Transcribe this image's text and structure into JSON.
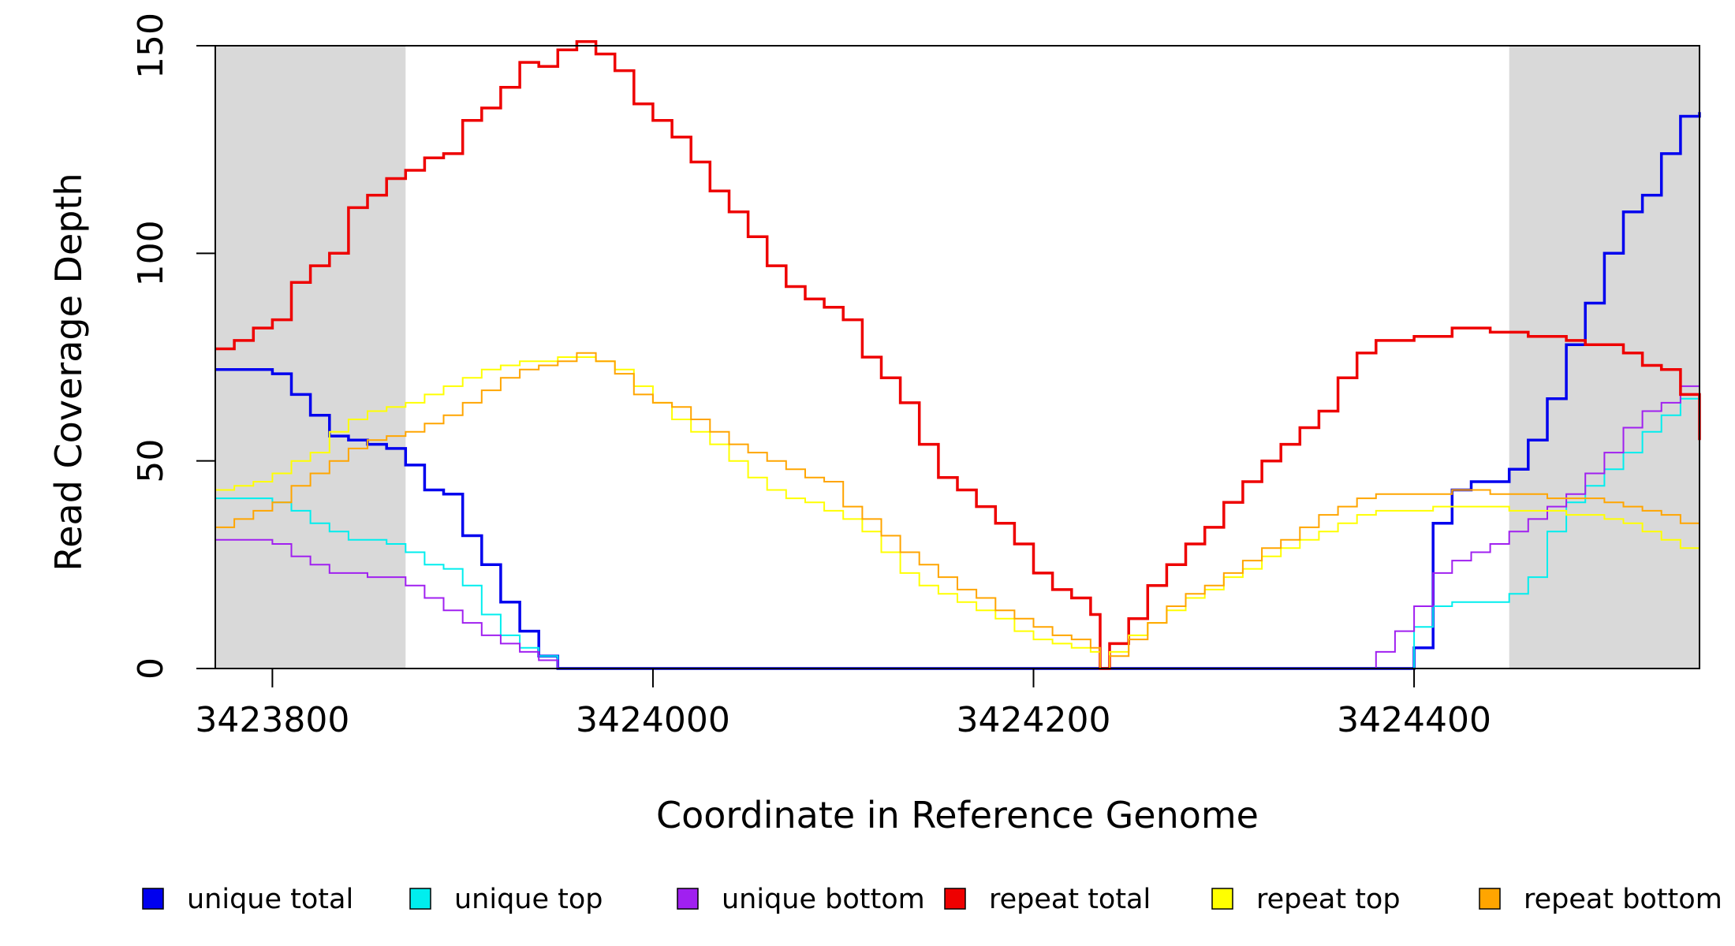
{
  "chart_data": {
    "type": "line",
    "xlabel": "Coordinate in Reference Genome",
    "ylabel": "Read Coverage Depth",
    "xlim": [
      3423770,
      3424550
    ],
    "ylim": [
      0,
      150
    ],
    "x_ticks": [
      3423800,
      3424000,
      3424200,
      3424400
    ],
    "y_ticks": [
      0,
      50,
      100,
      150
    ],
    "shaded_regions": [
      {
        "from": 3423770,
        "to": 3423870,
        "color": "#d9d9d9"
      },
      {
        "from": 3424450,
        "to": 3424550,
        "color": "#d9d9d9"
      }
    ],
    "grid": false,
    "legend_position": "bottom",
    "series": [
      {
        "name": "unique total",
        "color": "#0000ee",
        "x": [
          3423770,
          3423790,
          3423800,
          3423810,
          3423820,
          3423830,
          3423840,
          3423850,
          3423860,
          3423870,
          3423880,
          3423890,
          3423900,
          3423910,
          3423920,
          3423930,
          3423940,
          3423950,
          3423960,
          3424370,
          3424380,
          3424390,
          3424400,
          3424410,
          3424420,
          3424430,
          3424440,
          3424450,
          3424460,
          3424470,
          3424480,
          3424490,
          3424500,
          3424510,
          3424520,
          3424530,
          3424540,
          3424550
        ],
        "y": [
          72,
          72,
          71,
          66,
          61,
          56,
          55,
          54,
          53,
          49,
          43,
          42,
          32,
          25,
          16,
          9,
          3,
          0,
          0,
          0,
          0,
          0,
          5,
          35,
          43,
          45,
          45,
          48,
          55,
          65,
          78,
          88,
          100,
          110,
          114,
          124,
          133,
          134
        ]
      },
      {
        "name": "unique top",
        "color": "#00eeee",
        "x": [
          3423770,
          3423790,
          3423800,
          3423810,
          3423820,
          3423830,
          3423840,
          3423850,
          3423860,
          3423870,
          3423880,
          3423890,
          3423900,
          3423910,
          3423920,
          3423930,
          3423940,
          3423950,
          3423960,
          3424390,
          3424395,
          3424400,
          3424410,
          3424420,
          3424430,
          3424440,
          3424450,
          3424460,
          3424470,
          3424480,
          3424490,
          3424500,
          3424510,
          3424520,
          3424530,
          3424540,
          3424550
        ],
        "y": [
          41,
          41,
          40,
          38,
          35,
          33,
          31,
          31,
          30,
          28,
          25,
          24,
          20,
          13,
          8,
          5,
          3,
          0,
          0,
          0,
          0,
          10,
          15,
          16,
          16,
          16,
          18,
          22,
          33,
          40,
          44,
          48,
          52,
          57,
          61,
          65,
          66
        ]
      },
      {
        "name": "unique bottom",
        "color": "#a020f0",
        "x": [
          3423770,
          3423790,
          3423800,
          3423810,
          3423820,
          3423830,
          3423840,
          3423850,
          3423860,
          3423870,
          3423880,
          3423890,
          3423900,
          3423910,
          3423920,
          3423930,
          3423940,
          3423950,
          3423960,
          3424360,
          3424370,
          3424380,
          3424390,
          3424400,
          3424410,
          3424420,
          3424430,
          3424440,
          3424450,
          3424460,
          3424470,
          3424480,
          3424490,
          3424500,
          3424510,
          3424520,
          3424530,
          3424540,
          3424550
        ],
        "y": [
          31,
          31,
          30,
          27,
          25,
          23,
          23,
          22,
          22,
          20,
          17,
          14,
          11,
          8,
          6,
          4,
          2,
          0,
          0,
          0,
          0,
          4,
          9,
          15,
          23,
          26,
          28,
          30,
          33,
          36,
          39,
          42,
          47,
          52,
          58,
          62,
          64,
          68,
          68
        ]
      },
      {
        "name": "repeat total",
        "color": "#ee0000",
        "x": [
          3423770,
          3423780,
          3423790,
          3423800,
          3423810,
          3423820,
          3423830,
          3423840,
          3423850,
          3423860,
          3423870,
          3423880,
          3423890,
          3423900,
          3423910,
          3423920,
          3423930,
          3423940,
          3423950,
          3423960,
          3423970,
          3423980,
          3423990,
          3424000,
          3424010,
          3424020,
          3424030,
          3424040,
          3424050,
          3424060,
          3424070,
          3424080,
          3424090,
          3424100,
          3424110,
          3424120,
          3424130,
          3424140,
          3424150,
          3424160,
          3424170,
          3424180,
          3424190,
          3424200,
          3424210,
          3424220,
          3424230,
          3424235,
          3424240,
          3424250,
          3424260,
          3424270,
          3424280,
          3424290,
          3424300,
          3424310,
          3424320,
          3424330,
          3424340,
          3424350,
          3424360,
          3424370,
          3424380,
          3424390,
          3424400,
          3424410,
          3424420,
          3424430,
          3424440,
          3424450,
          3424460,
          3424470,
          3424480,
          3424490,
          3424500,
          3424510,
          3424520,
          3424530,
          3424540,
          3424550
        ],
        "y": [
          77,
          79,
          82,
          84,
          93,
          97,
          100,
          111,
          114,
          118,
          120,
          123,
          124,
          132,
          135,
          140,
          146,
          145,
          149,
          151,
          148,
          144,
          136,
          132,
          128,
          122,
          115,
          110,
          104,
          97,
          92,
          89,
          87,
          84,
          75,
          70,
          64,
          54,
          46,
          43,
          39,
          35,
          30,
          23,
          19,
          17,
          13,
          0,
          6,
          12,
          20,
          25,
          30,
          34,
          40,
          45,
          50,
          54,
          58,
          62,
          70,
          76,
          79,
          79,
          80,
          80,
          82,
          82,
          81,
          81,
          80,
          80,
          79,
          78,
          78,
          76,
          73,
          72,
          66,
          55
        ]
      },
      {
        "name": "repeat top",
        "color": "#ffff00",
        "x": [
          3423770,
          3423780,
          3423790,
          3423800,
          3423810,
          3423820,
          3423830,
          3423840,
          3423850,
          3423860,
          3423870,
          3423880,
          3423890,
          3423900,
          3423910,
          3423920,
          3423930,
          3423940,
          3423950,
          3423960,
          3423970,
          3423980,
          3423990,
          3424000,
          3424010,
          3424020,
          3424030,
          3424040,
          3424050,
          3424060,
          3424070,
          3424080,
          3424090,
          3424100,
          3424110,
          3424120,
          3424130,
          3424140,
          3424150,
          3424160,
          3424170,
          3424180,
          3424190,
          3424200,
          3424210,
          3424220,
          3424230,
          3424235,
          3424240,
          3424250,
          3424260,
          3424270,
          3424280,
          3424290,
          3424300,
          3424310,
          3424320,
          3424330,
          3424340,
          3424350,
          3424360,
          3424370,
          3424380,
          3424390,
          3424400,
          3424410,
          3424420,
          3424430,
          3424440,
          3424450,
          3424460,
          3424470,
          3424480,
          3424490,
          3424500,
          3424510,
          3424520,
          3424530,
          3424540,
          3424550
        ],
        "y": [
          43,
          44,
          45,
          47,
          50,
          52,
          57,
          60,
          62,
          63,
          64,
          66,
          68,
          70,
          72,
          73,
          74,
          74,
          75,
          75,
          74,
          72,
          68,
          64,
          60,
          57,
          54,
          50,
          46,
          43,
          41,
          40,
          38,
          36,
          33,
          28,
          23,
          20,
          18,
          16,
          14,
          12,
          9,
          7,
          6,
          5,
          4,
          0,
          4,
          8,
          11,
          14,
          17,
          19,
          22,
          24,
          27,
          29,
          31,
          33,
          35,
          37,
          38,
          38,
          38,
          39,
          39,
          39,
          39,
          38,
          38,
          38,
          37,
          37,
          36,
          35,
          33,
          31,
          29,
          26
        ]
      },
      {
        "name": "repeat bottom",
        "color": "#ffa500",
        "x": [
          3423770,
          3423780,
          3423790,
          3423800,
          3423810,
          3423820,
          3423830,
          3423840,
          3423850,
          3423860,
          3423870,
          3423880,
          3423890,
          3423900,
          3423910,
          3423920,
          3423930,
          3423940,
          3423950,
          3423960,
          3423970,
          3423980,
          3423990,
          3424000,
          3424010,
          3424020,
          3424030,
          3424040,
          3424050,
          3424060,
          3424070,
          3424080,
          3424090,
          3424100,
          3424110,
          3424120,
          3424130,
          3424140,
          3424150,
          3424160,
          3424170,
          3424180,
          3424190,
          3424200,
          3424210,
          3424220,
          3424230,
          3424235,
          3424240,
          3424250,
          3424260,
          3424270,
          3424280,
          3424290,
          3424300,
          3424310,
          3424320,
          3424330,
          3424340,
          3424350,
          3424360,
          3424370,
          3424380,
          3424390,
          3424400,
          3424410,
          3424420,
          3424430,
          3424440,
          3424450,
          3424460,
          3424470,
          3424480,
          3424490,
          3424500,
          3424510,
          3424520,
          3424530,
          3424540,
          3424550
        ],
        "y": [
          34,
          36,
          38,
          40,
          44,
          47,
          50,
          53,
          55,
          56,
          57,
          59,
          61,
          64,
          67,
          70,
          72,
          73,
          74,
          76,
          74,
          71,
          66,
          64,
          63,
          60,
          57,
          54,
          52,
          50,
          48,
          46,
          45,
          39,
          36,
          32,
          28,
          25,
          22,
          19,
          17,
          14,
          12,
          10,
          8,
          7,
          5,
          0,
          3,
          7,
          11,
          15,
          18,
          20,
          23,
          26,
          29,
          31,
          34,
          37,
          39,
          41,
          42,
          42,
          42,
          42,
          43,
          43,
          42,
          42,
          42,
          41,
          41,
          41,
          40,
          39,
          38,
          37,
          35,
          30
        ]
      }
    ]
  },
  "legend": {
    "items": [
      {
        "label": "unique total",
        "color": "#0000ee"
      },
      {
        "label": "unique top",
        "color": "#00eeee"
      },
      {
        "label": "unique bottom",
        "color": "#a020f0"
      },
      {
        "label": "repeat total",
        "color": "#ee0000"
      },
      {
        "label": "repeat top",
        "color": "#ffff00"
      },
      {
        "label": "repeat bottom",
        "color": "#ffa500"
      }
    ]
  }
}
